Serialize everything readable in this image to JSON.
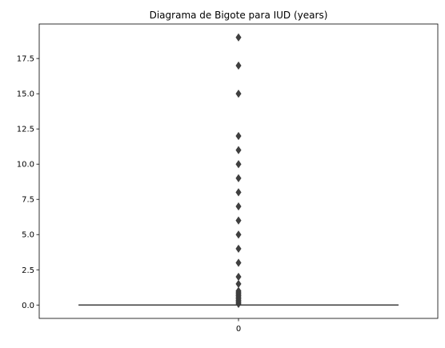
{
  "chart_data": {
    "type": "box",
    "title": "Diagrama de Bigote para IUD (years)",
    "xlabel": "",
    "ylabel": "",
    "categories": [
      "0"
    ],
    "ylim": [
      -0.95,
      19.95
    ],
    "yticks": [
      0.0,
      2.5,
      5.0,
      7.5,
      10.0,
      12.5,
      15.0,
      17.5
    ],
    "ytick_labels": [
      "0.0",
      "2.5",
      "5.0",
      "7.5",
      "10.0",
      "12.5",
      "15.0",
      "17.5"
    ],
    "grid": false,
    "legend": "none",
    "box": {
      "q1": 0.0,
      "median": 0.0,
      "q3": 0.0,
      "whisker_low": 0.0,
      "whisker_high": 0.0
    },
    "outliers": [
      0.08,
      0.17,
      0.25,
      0.33,
      0.42,
      0.5,
      0.58,
      0.67,
      0.75,
      0.83,
      0.92,
      1.0,
      1.5,
      2.0,
      3.0,
      4.0,
      5.0,
      6.0,
      7.0,
      8.0,
      9.0,
      10.0,
      11.0,
      12.0,
      15.0,
      17.0,
      19.0
    ],
    "colors": {
      "box_line": "#3f3f3f",
      "outlier": "#3f3f3f",
      "axes": "#000000"
    }
  }
}
